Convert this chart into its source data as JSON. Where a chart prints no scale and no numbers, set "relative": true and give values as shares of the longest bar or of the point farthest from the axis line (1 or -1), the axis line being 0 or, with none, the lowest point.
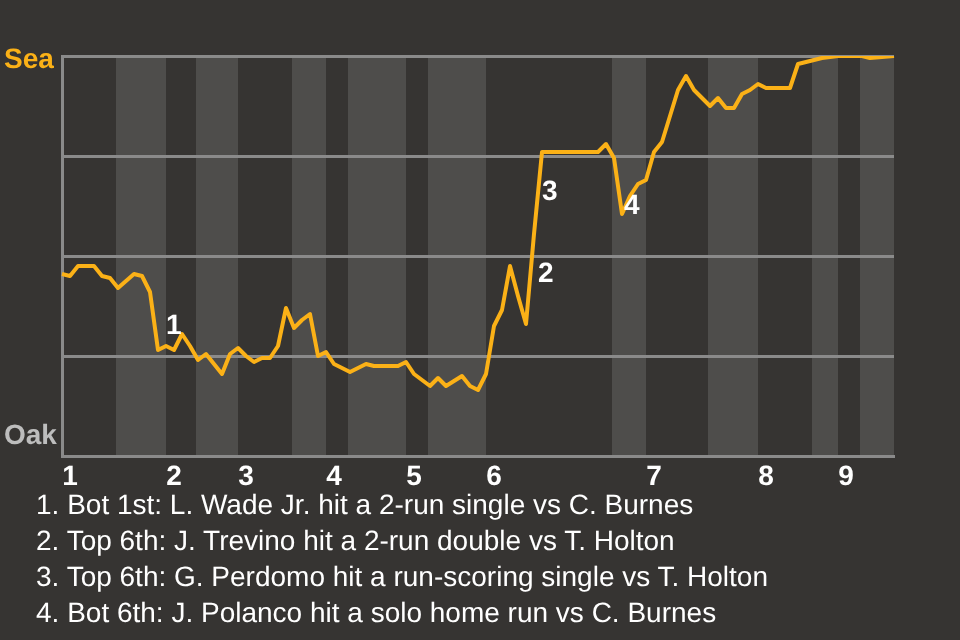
{
  "chart_data": {
    "type": "line",
    "relative": true,
    "categories": [
      null,
      "1",
      null,
      null,
      null,
      null,
      null,
      null,
      null,
      null,
      null,
      null,
      null,
      null,
      "2",
      null,
      null,
      null,
      null,
      null,
      null,
      null,
      null,
      "3",
      null,
      null,
      null,
      null,
      null,
      null,
      null,
      null,
      null,
      null,
      "4",
      null,
      null,
      null,
      null,
      null,
      null,
      null,
      null,
      null,
      "5",
      null,
      null,
      null,
      null,
      null,
      null,
      null,
      null,
      null,
      "6",
      null,
      null,
      null,
      null,
      null,
      null,
      null,
      null,
      null,
      null,
      null,
      null,
      null,
      null,
      null,
      null,
      null,
      null,
      null,
      "7",
      null,
      null,
      null,
      null,
      null,
      null,
      null,
      null,
      null,
      null,
      null,
      null,
      null,
      "8",
      null,
      null,
      null,
      null,
      null,
      null,
      null,
      null,
      null,
      "9",
      null,
      null,
      null,
      null,
      null,
      null
    ],
    "values": [
      0.455,
      0.45,
      0.475,
      null,
      0.475,
      0.45,
      0.445,
      0.42,
      null,
      0.455,
      0.45,
      0.41,
      0.265,
      0.275,
      0.265,
      0.305,
      0.275,
      0.24,
      0.255,
      0.23,
      0.205,
      0.255,
      0.27,
      0.25,
      0.235,
      0.245,
      0.245,
      0.275,
      0.37,
      0.32,
      0.34,
      0.355,
      0.25,
      0.26,
      0.23,
      null,
      0.21,
      null,
      0.23,
      0.225,
      null,
      null,
      0.225,
      0.235,
      0.205,
      null,
      0.175,
      0.195,
      0.175,
      null,
      0.2,
      0.175,
      0.165,
      0.205,
      0.325,
      0.365,
      0.475,
      0.4,
      0.33,
      0.555,
      0.76,
      null,
      null,
      null,
      null,
      null,
      null,
      0.76,
      0.78,
      0.745,
      0.605,
      0.65,
      0.68,
      0.69,
      0.76,
      0.785,
      null,
      0.915,
      0.95,
      0.915,
      null,
      0.875,
      0.895,
      0.87,
      0.87,
      0.905,
      0.915,
      0.93,
      0.92,
      null,
      null,
      0.92,
      0.98,
      null,
      0.99,
      0.995,
      null,
      1,
      null,
      null,
      1,
      0.995,
      null,
      null,
      1
    ],
    "color": "#fbb117",
    "grid": "y",
    "legend": false,
    "marker": "none",
    "line_style": "solid",
    "annotations": [
      "Sea",
      "Oak",
      "1",
      "2",
      "3",
      "4",
      "1. Bot 1st: L. Wade Jr. hit a 2-run single vs C. Burnes",
      "2. Top 6th: J. Trevino hit a 2-run double vs T. Holton",
      "3. Top 6th: G. Perdomo hit a run-scoring single vs T. Holton",
      "4. Bot 6th: J. Polanco hit a solo home run vs C. Burnes"
    ]
  }
}
